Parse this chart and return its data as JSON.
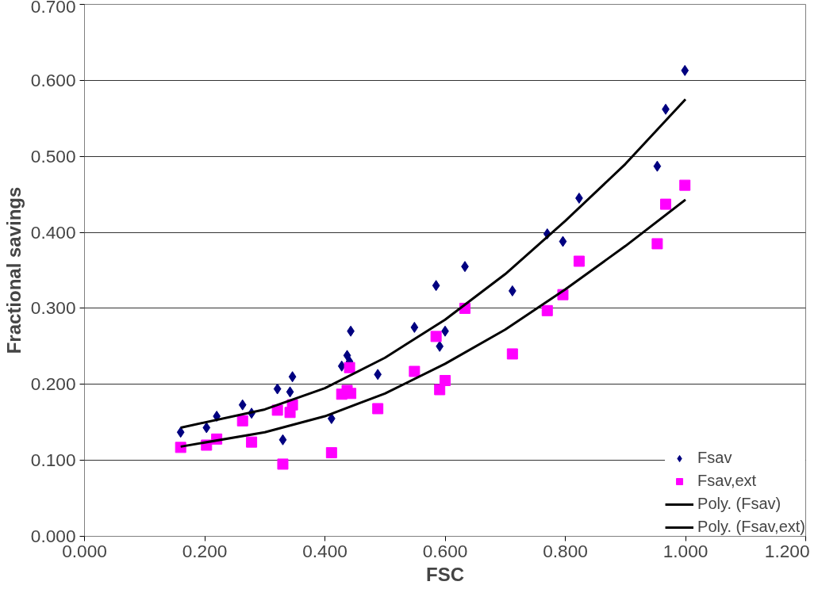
{
  "chart_data": {
    "type": "scatter",
    "xlabel": "FSC",
    "ylabel": "Fractional savings",
    "xlim": [
      0,
      1.2
    ],
    "xticks": [
      {
        "value": 0,
        "label": "0.000"
      },
      {
        "value": 0.2,
        "label": "0.200"
      },
      {
        "value": 0.4,
        "label": "0.400"
      },
      {
        "value": 0.6,
        "label": "0.600"
      },
      {
        "value": 0.8,
        "label": "0.800"
      },
      {
        "value": 1.0,
        "label": "1.000"
      },
      {
        "value": 1.2,
        "label": "1.200"
      }
    ],
    "ylim": [
      0,
      0.7
    ],
    "yticks": [
      {
        "value": 0,
        "label": "0.000"
      },
      {
        "value": 0.1,
        "label": "0.100"
      },
      {
        "value": 0.2,
        "label": "0.200"
      },
      {
        "value": 0.3,
        "label": "0.300"
      },
      {
        "value": 0.4,
        "label": "0.400"
      },
      {
        "value": 0.5,
        "label": "0.500"
      },
      {
        "value": 0.6,
        "label": "0.600"
      },
      {
        "value": 0.7,
        "label": "0.700"
      }
    ],
    "grid": "y",
    "legend": "right",
    "series": [
      {
        "name": "Fsav",
        "type": "scatter",
        "marker": "diamond",
        "color": "#000080",
        "x": [
          0.16,
          0.203,
          0.22,
          0.263,
          0.278,
          0.321,
          0.33,
          0.342,
          0.346,
          0.411,
          0.428,
          0.437,
          0.441,
          0.443,
          0.488,
          0.549,
          0.585,
          0.591,
          0.6,
          0.633,
          0.712,
          0.77,
          0.796,
          0.823,
          0.953,
          0.967,
          0.999
        ],
        "values": [
          0.137,
          0.143,
          0.158,
          0.173,
          0.162,
          0.194,
          0.127,
          0.19,
          0.21,
          0.155,
          0.224,
          0.238,
          0.23,
          0.27,
          0.213,
          0.275,
          0.33,
          0.25,
          0.27,
          0.355,
          0.323,
          0.398,
          0.388,
          0.445,
          0.487,
          0.562,
          0.613
        ]
      },
      {
        "name": "Fsav,ext",
        "type": "scatter",
        "marker": "square",
        "color": "#ff00ff",
        "x": [
          0.16,
          0.203,
          0.22,
          0.263,
          0.278,
          0.321,
          0.33,
          0.342,
          0.346,
          0.411,
          0.428,
          0.437,
          0.441,
          0.443,
          0.488,
          0.549,
          0.585,
          0.591,
          0.6,
          0.633,
          0.712,
          0.77,
          0.796,
          0.823,
          0.953,
          0.967,
          0.999
        ],
        "values": [
          0.117,
          0.12,
          0.128,
          0.152,
          0.124,
          0.166,
          0.095,
          0.163,
          0.173,
          0.11,
          0.187,
          0.192,
          0.222,
          0.188,
          0.168,
          0.217,
          0.263,
          0.193,
          0.205,
          0.3,
          0.24,
          0.297,
          0.318,
          0.362,
          0.385,
          0.437,
          0.462
        ]
      },
      {
        "name": "Poly. (Fsav)",
        "type": "line",
        "color": "#000000",
        "x": [
          0.16,
          0.3,
          0.4,
          0.5,
          0.6,
          0.7,
          0.8,
          0.9,
          1.0
        ],
        "values": [
          0.143,
          0.167,
          0.195,
          0.235,
          0.285,
          0.345,
          0.415,
          0.49,
          0.575
        ]
      },
      {
        "name": "Poly. (Fsav,ext)",
        "type": "line",
        "color": "#000000",
        "x": [
          0.16,
          0.3,
          0.4,
          0.5,
          0.6,
          0.7,
          0.8,
          0.9,
          1.0
        ],
        "values": [
          0.118,
          0.137,
          0.158,
          0.188,
          0.227,
          0.272,
          0.325,
          0.382,
          0.443
        ]
      }
    ]
  }
}
